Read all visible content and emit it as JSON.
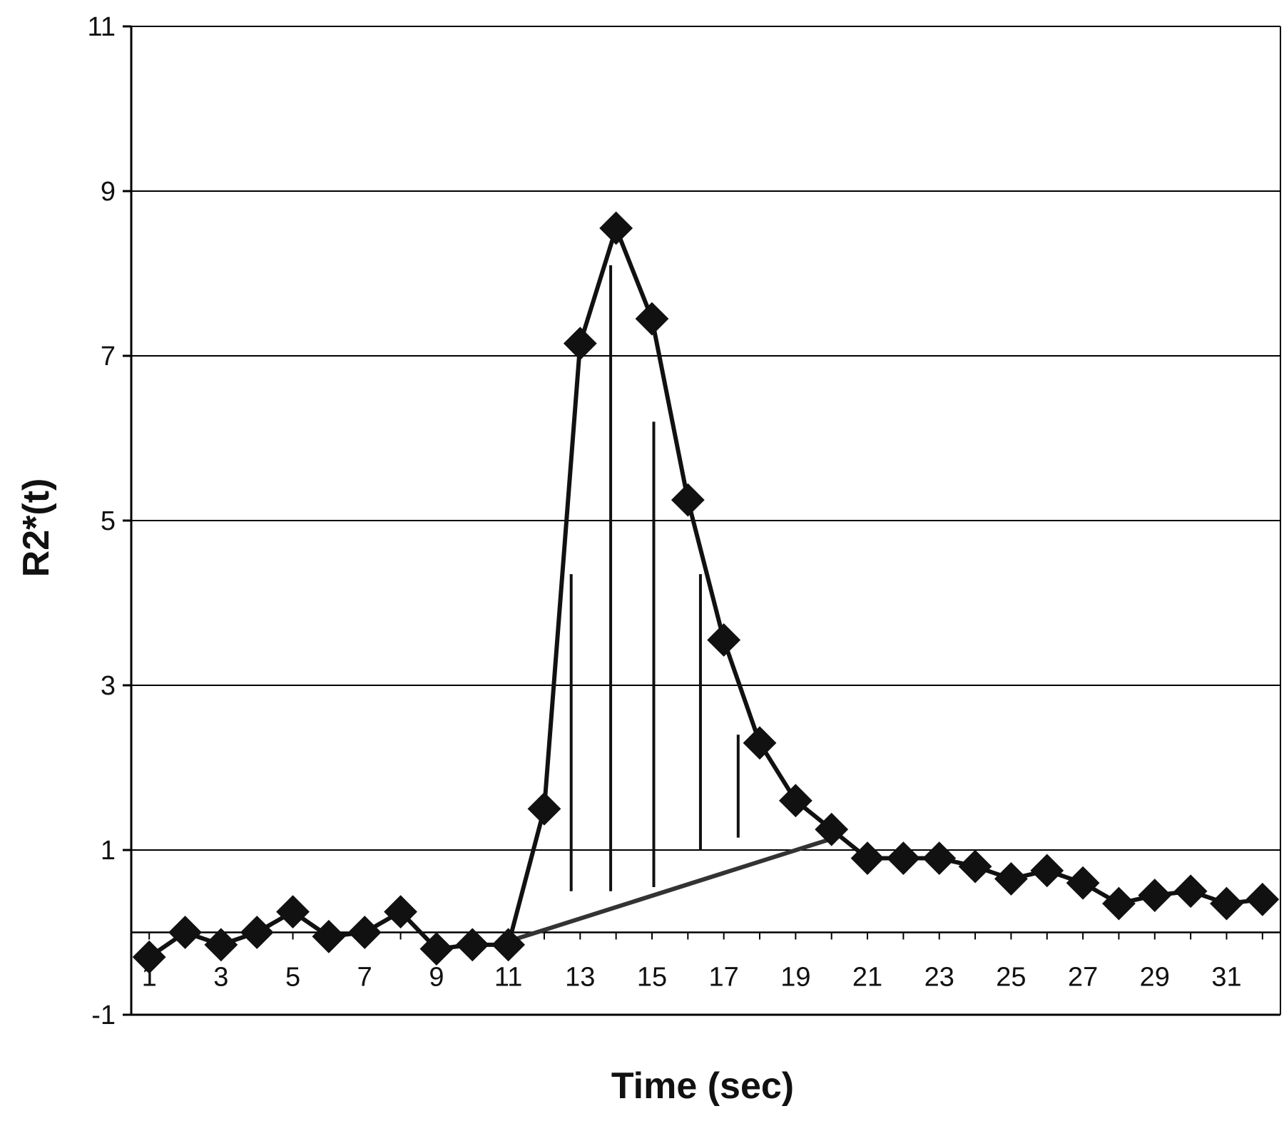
{
  "colors": {
    "background": "#ffffff",
    "gridline": "#000000",
    "series": "#111111",
    "baseline_fit": "#333333"
  },
  "chart_data": {
    "type": "line",
    "title": "",
    "xlabel": "Time (sec)",
    "ylabel": "R2*(t)",
    "xlim": [
      0.5,
      32.5
    ],
    "ylim": [
      -1,
      11
    ],
    "y_ticks": [
      -1,
      1,
      3,
      5,
      7,
      9,
      11
    ],
    "x_tick_labels": [
      1,
      3,
      5,
      7,
      9,
      11,
      13,
      15,
      17,
      19,
      21,
      23,
      25,
      27,
      29,
      31
    ],
    "grid": "horizontal",
    "legend": "none",
    "marker": "diamond",
    "series": [
      {
        "x": [
          1,
          2,
          3,
          4,
          5,
          6,
          7,
          8,
          9,
          10,
          11,
          12,
          13,
          14,
          15,
          16,
          17,
          18,
          19,
          20,
          21,
          22,
          23,
          24,
          25,
          26,
          27,
          28,
          29,
          30,
          31,
          32
        ],
        "values": [
          -0.3,
          0.0,
          -0.15,
          0.0,
          0.25,
          -0.05,
          0.0,
          0.25,
          -0.2,
          -0.15,
          -0.15,
          1.5,
          7.15,
          8.55,
          7.45,
          5.25,
          3.55,
          2.3,
          1.6,
          1.25,
          0.9,
          0.9,
          0.9,
          0.8,
          0.65,
          0.75,
          0.6,
          0.35,
          0.45,
          0.5,
          0.35,
          0.4
        ]
      }
    ],
    "baseline_fit_line": {
      "from": [
        10.7,
        -0.15
      ],
      "to": [
        20.1,
        1.15
      ]
    },
    "area_markers": [
      {
        "x": 12.75,
        "from": 0.5,
        "to": 4.35
      },
      {
        "x": 13.85,
        "from": 0.5,
        "to": 8.1
      },
      {
        "x": 15.05,
        "from": 0.55,
        "to": 6.2
      },
      {
        "x": 16.35,
        "from": 1.0,
        "to": 4.35
      },
      {
        "x": 17.4,
        "from": 1.15,
        "to": 2.4
      }
    ]
  }
}
